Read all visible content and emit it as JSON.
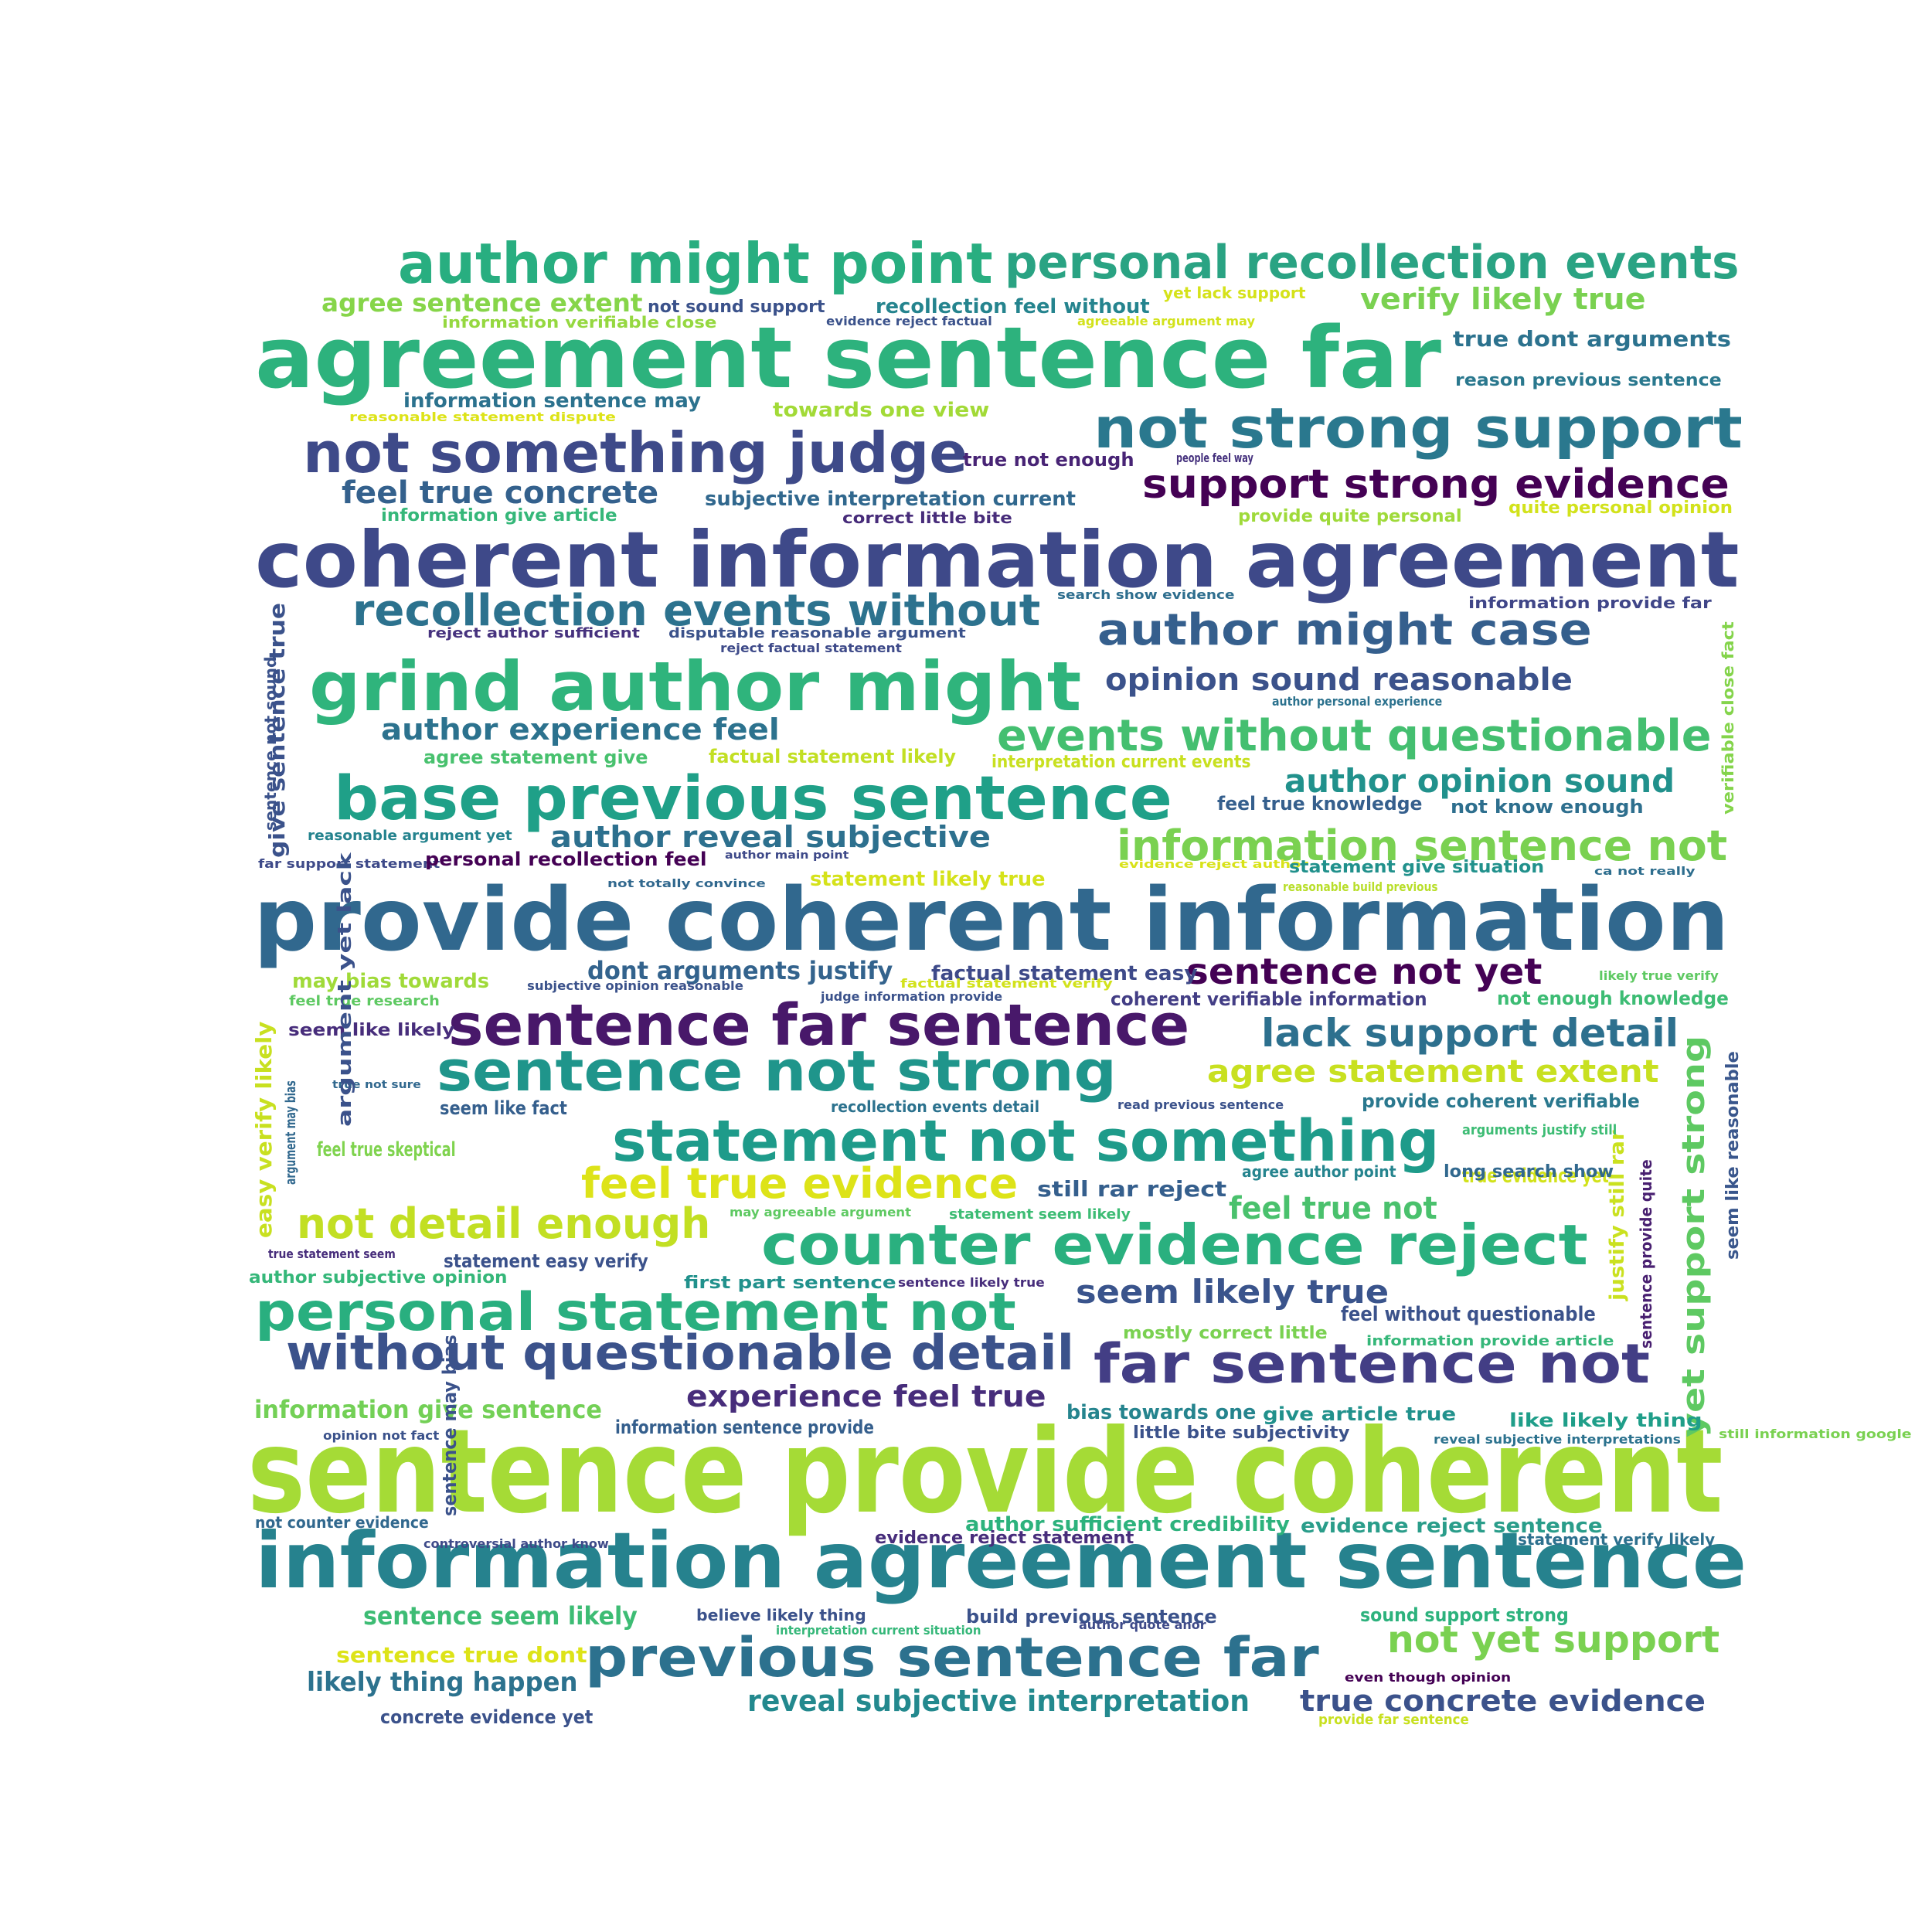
{
  "palette": {
    "dark_purple": "#440154",
    "indigo": "#3b3f8c",
    "slate_blue": "#31688e",
    "teal": "#26828e",
    "green_teal": "#1f9e89",
    "green": "#35b779",
    "light_green": "#6ece58",
    "lime": "#b5de2b",
    "yellow": "#d8e219"
  },
  "words": [
    {
      "text": "sentence provide coherent",
      "color": "#a5db36"
    },
    {
      "text": "provide coherent information",
      "color": "#31688e"
    },
    {
      "text": "coherent information agreement",
      "color": "#3e4989"
    },
    {
      "text": "agreement sentence far",
      "color": "#2db27d"
    },
    {
      "text": "information agreement sentence",
      "color": "#26828e"
    },
    {
      "text": "grind author might",
      "color": "#2fb47c"
    },
    {
      "text": "author might point",
      "color": "#28ae80"
    },
    {
      "text": "base previous sentence",
      "color": "#1fa088"
    },
    {
      "text": "not something judge",
      "color": "#3e4a89"
    },
    {
      "text": "not strong support",
      "color": "#2a788e"
    },
    {
      "text": "sentence far sentence",
      "color": "#48186a"
    },
    {
      "text": "statement not something",
      "color": "#1e9b8a"
    },
    {
      "text": "counter evidence reject",
      "color": "#2ab07f"
    },
    {
      "text": "sentence not strong",
      "color": "#1f958b"
    },
    {
      "text": "previous sentence far",
      "color": "#2c718e"
    },
    {
      "text": "personal statement not",
      "color": "#29af7f"
    },
    {
      "text": "far sentence not",
      "color": "#433e85"
    },
    {
      "text": "personal recollection events",
      "color": "#2aa383"
    },
    {
      "text": "without questionable detail",
      "color": "#3b528b"
    },
    {
      "text": "recollection events without",
      "color": "#2c728e"
    },
    {
      "text": "author might case",
      "color": "#355f8d"
    },
    {
      "text": "support strong evidence",
      "color": "#440154"
    },
    {
      "text": "events without questionable",
      "color": "#44bf70"
    },
    {
      "text": "information sentence not",
      "color": "#7ad151"
    },
    {
      "text": "feel true evidence",
      "color": "#dde318"
    },
    {
      "text": "not detail enough",
      "color": "#c2df23"
    },
    {
      "text": "lack support detail",
      "color": "#2d708e"
    },
    {
      "text": "yet support strong",
      "color": "#5ec962"
    },
    {
      "text": "not yet support",
      "color": "#7ad151"
    },
    {
      "text": "feel true concrete",
      "color": "#34618d"
    },
    {
      "text": "author opinion sound",
      "color": "#21918c"
    },
    {
      "text": "opinion sound reasonable",
      "color": "#3b528b"
    },
    {
      "text": "author experience feel",
      "color": "#2c728e"
    },
    {
      "text": "author reveal subjective",
      "color": "#2d708e"
    },
    {
      "text": "sentence not yet",
      "color": "#440154"
    },
    {
      "text": "agree statement extent",
      "color": "#c8e020"
    },
    {
      "text": "seem likely true",
      "color": "#3a548c"
    },
    {
      "text": "experience feel true",
      "color": "#472d7b"
    },
    {
      "text": "reveal subjective interpretation",
      "color": "#23898e"
    },
    {
      "text": "true concrete evidence",
      "color": "#3b528b"
    },
    {
      "text": "likely thing happen",
      "color": "#2c728e"
    },
    {
      "text": "verify likely true",
      "color": "#7ad151"
    },
    {
      "text": "agree sentence extent",
      "color": "#86d549"
    },
    {
      "text": "feel true not",
      "color": "#4ac16d"
    },
    {
      "text": "information give sentence",
      "color": "#73d056"
    },
    {
      "text": "sentence seem likely",
      "color": "#3dbc74"
    },
    {
      "text": "sentence true dont",
      "color": "#dde318"
    },
    {
      "text": "true dont arguments",
      "color": "#2c728e"
    },
    {
      "text": "dont arguments justify",
      "color": "#33638d"
    },
    {
      "text": "easy verify likely",
      "color": "#c8e020"
    },
    {
      "text": "give sentence true",
      "color": "#3b528b"
    },
    {
      "text": "justify still rar",
      "color": "#cae11f"
    },
    {
      "text": "sentence provide quite",
      "color": "#481f70"
    },
    {
      "text": "seem like reasonable",
      "color": "#39568c"
    },
    {
      "text": "still rar reject",
      "color": "#355f8d"
    },
    {
      "text": "information sentence may",
      "color": "#2c728e"
    },
    {
      "text": "towards one view",
      "color": "#a2da37"
    },
    {
      "text": "true not enough",
      "color": "#482475"
    },
    {
      "text": "subjective interpretation current",
      "color": "#31688e"
    },
    {
      "text": "information give article",
      "color": "#35b779"
    },
    {
      "text": "correct little bite",
      "color": "#472c7a"
    },
    {
      "text": "provide quite personal",
      "color": "#9fda3a"
    },
    {
      "text": "quite personal opinion",
      "color": "#d2e21b"
    },
    {
      "text": "not sound support",
      "color": "#3b528b"
    },
    {
      "text": "recollection feel without",
      "color": "#25848e"
    },
    {
      "text": "yet lack support",
      "color": "#d5e21a"
    },
    {
      "text": "information verifiable close",
      "color": "#95d840"
    },
    {
      "text": "evidence reject factual",
      "color": "#3b528b"
    },
    {
      "text": "agreeable argument may",
      "color": "#d2e21b"
    },
    {
      "text": "reasonable statement dispute",
      "color": "#dde318"
    },
    {
      "text": "reason previous sentence",
      "color": "#2a788e"
    },
    {
      "text": "people feel way",
      "color": "#46327e"
    },
    {
      "text": "search show evidence",
      "color": "#2e6e8e"
    },
    {
      "text": "information provide far",
      "color": "#404688"
    },
    {
      "text": "reject author sufficient",
      "color": "#46327e"
    },
    {
      "text": "disputable reasonable argument",
      "color": "#3b528b"
    },
    {
      "text": "reject factual statement",
      "color": "#3e4a89"
    },
    {
      "text": "author personal experience",
      "color": "#2c728e"
    },
    {
      "text": "verifiable close fact",
      "color": "#84d44b"
    },
    {
      "text": "sentence not sound",
      "color": "#3b528b"
    },
    {
      "text": "agree statement give",
      "color": "#48c16e"
    },
    {
      "text": "factual statement likely",
      "color": "#c2df23"
    },
    {
      "text": "interpretation current events",
      "color": "#c8e020"
    },
    {
      "text": "feel true knowledge",
      "color": "#355f8d"
    },
    {
      "text": "not know enough",
      "color": "#2e6f8e"
    },
    {
      "text": "reasonable argument yet",
      "color": "#25838e"
    },
    {
      "text": "far support statement",
      "color": "#3e4a89"
    },
    {
      "text": "personal recollection feel",
      "color": "#440154"
    },
    {
      "text": "author main point",
      "color": "#3e4989"
    },
    {
      "text": "evidence reject author",
      "color": "#d8e219"
    },
    {
      "text": "statement give situation",
      "color": "#21918c"
    },
    {
      "text": "reasonable build previous",
      "color": "#b8de29"
    },
    {
      "text": "ca not really",
      "color": "#2e6e8e"
    },
    {
      "text": "not totally convince",
      "color": "#31688e"
    },
    {
      "text": "statement likely true",
      "color": "#d5e21a"
    },
    {
      "text": "may bias towards",
      "color": "#a0da39"
    },
    {
      "text": "subjective opinion reasonable",
      "color": "#3b528b"
    },
    {
      "text": "factual statement easy",
      "color": "#3e4a89"
    },
    {
      "text": "factual statement verify",
      "color": "#d2e21b"
    },
    {
      "text": "judge information provide",
      "color": "#3b528b"
    },
    {
      "text": "coherent verifiable information",
      "color": "#433e85"
    },
    {
      "text": "likely true verify",
      "color": "#5ec962"
    },
    {
      "text": "not enough knowledge",
      "color": "#3dbc74"
    },
    {
      "text": "feel true research",
      "color": "#5ec962"
    },
    {
      "text": "seem like likely",
      "color": "#472d7b"
    },
    {
      "text": "true not sure",
      "color": "#31688e"
    },
    {
      "text": "seem like fact",
      "color": "#355f8d"
    },
    {
      "text": "recollection events detail",
      "color": "#2c728e"
    },
    {
      "text": "read previous sentence",
      "color": "#3b528b"
    },
    {
      "text": "provide coherent verifiable",
      "color": "#2a788e"
    },
    {
      "text": "arguments justify still",
      "color": "#3dbc74"
    },
    {
      "text": "feel true skeptical",
      "color": "#7fd34e"
    },
    {
      "text": "argument may bias",
      "color": "#31688e"
    },
    {
      "text": "argument yet lack",
      "color": "#3b528b"
    },
    {
      "text": "true evidence yet",
      "color": "#d2e21b"
    },
    {
      "text": "agree author point",
      "color": "#25848e"
    },
    {
      "text": "long search show",
      "color": "#31688e"
    },
    {
      "text": "may agreeable argument",
      "color": "#5ec962"
    },
    {
      "text": "statement seem likely",
      "color": "#3dbc74"
    },
    {
      "text": "true statement seem",
      "color": "#472d7b"
    },
    {
      "text": "statement easy verify",
      "color": "#3b528b"
    },
    {
      "text": "author subjective opinion",
      "color": "#35b779"
    },
    {
      "text": "first part sentence",
      "color": "#21918c"
    },
    {
      "text": "sentence likely true",
      "color": "#472d7b"
    },
    {
      "text": "feel without questionable",
      "color": "#3b528b"
    },
    {
      "text": "mostly correct little",
      "color": "#7ad151"
    },
    {
      "text": "information provide article",
      "color": "#35b779"
    },
    {
      "text": "information sentence provide",
      "color": "#355f8d"
    },
    {
      "text": "bias towards one",
      "color": "#25848e"
    },
    {
      "text": "give article true",
      "color": "#21918c"
    },
    {
      "text": "like likely thing",
      "color": "#1f9e89"
    },
    {
      "text": "little bite subjectivity",
      "color": "#3b528b"
    },
    {
      "text": "reveal subjective interpretations",
      "color": "#2c728e"
    },
    {
      "text": "opinion not fact",
      "color": "#3b528b"
    },
    {
      "text": "still information google",
      "color": "#7ad151"
    },
    {
      "text": "not counter evidence",
      "color": "#31688e"
    },
    {
      "text": "sentence may bias",
      "color": "#3b528b"
    },
    {
      "text": "author sufficient credibility",
      "color": "#2db27d"
    },
    {
      "text": "evidence reject sentence",
      "color": "#2a9d8a"
    },
    {
      "text": "controversial author know",
      "color": "#3e4a89"
    },
    {
      "text": "evidence reject statement",
      "color": "#472d7b"
    },
    {
      "text": "statement verify likely",
      "color": "#2d708e"
    },
    {
      "text": "believe likely thing",
      "color": "#3b528b"
    },
    {
      "text": "build previous sentence",
      "color": "#3b528b"
    },
    {
      "text": "interpretation current situation",
      "color": "#35b779"
    },
    {
      "text": "author quote anor",
      "color": "#3e4a89"
    },
    {
      "text": "sound support strong",
      "color": "#2db27d"
    },
    {
      "text": "even though opinion",
      "color": "#440154"
    },
    {
      "text": "concrete evidence yet",
      "color": "#3b528b"
    },
    {
      "text": "provide far sentence",
      "color": "#c8e020"
    }
  ]
}
